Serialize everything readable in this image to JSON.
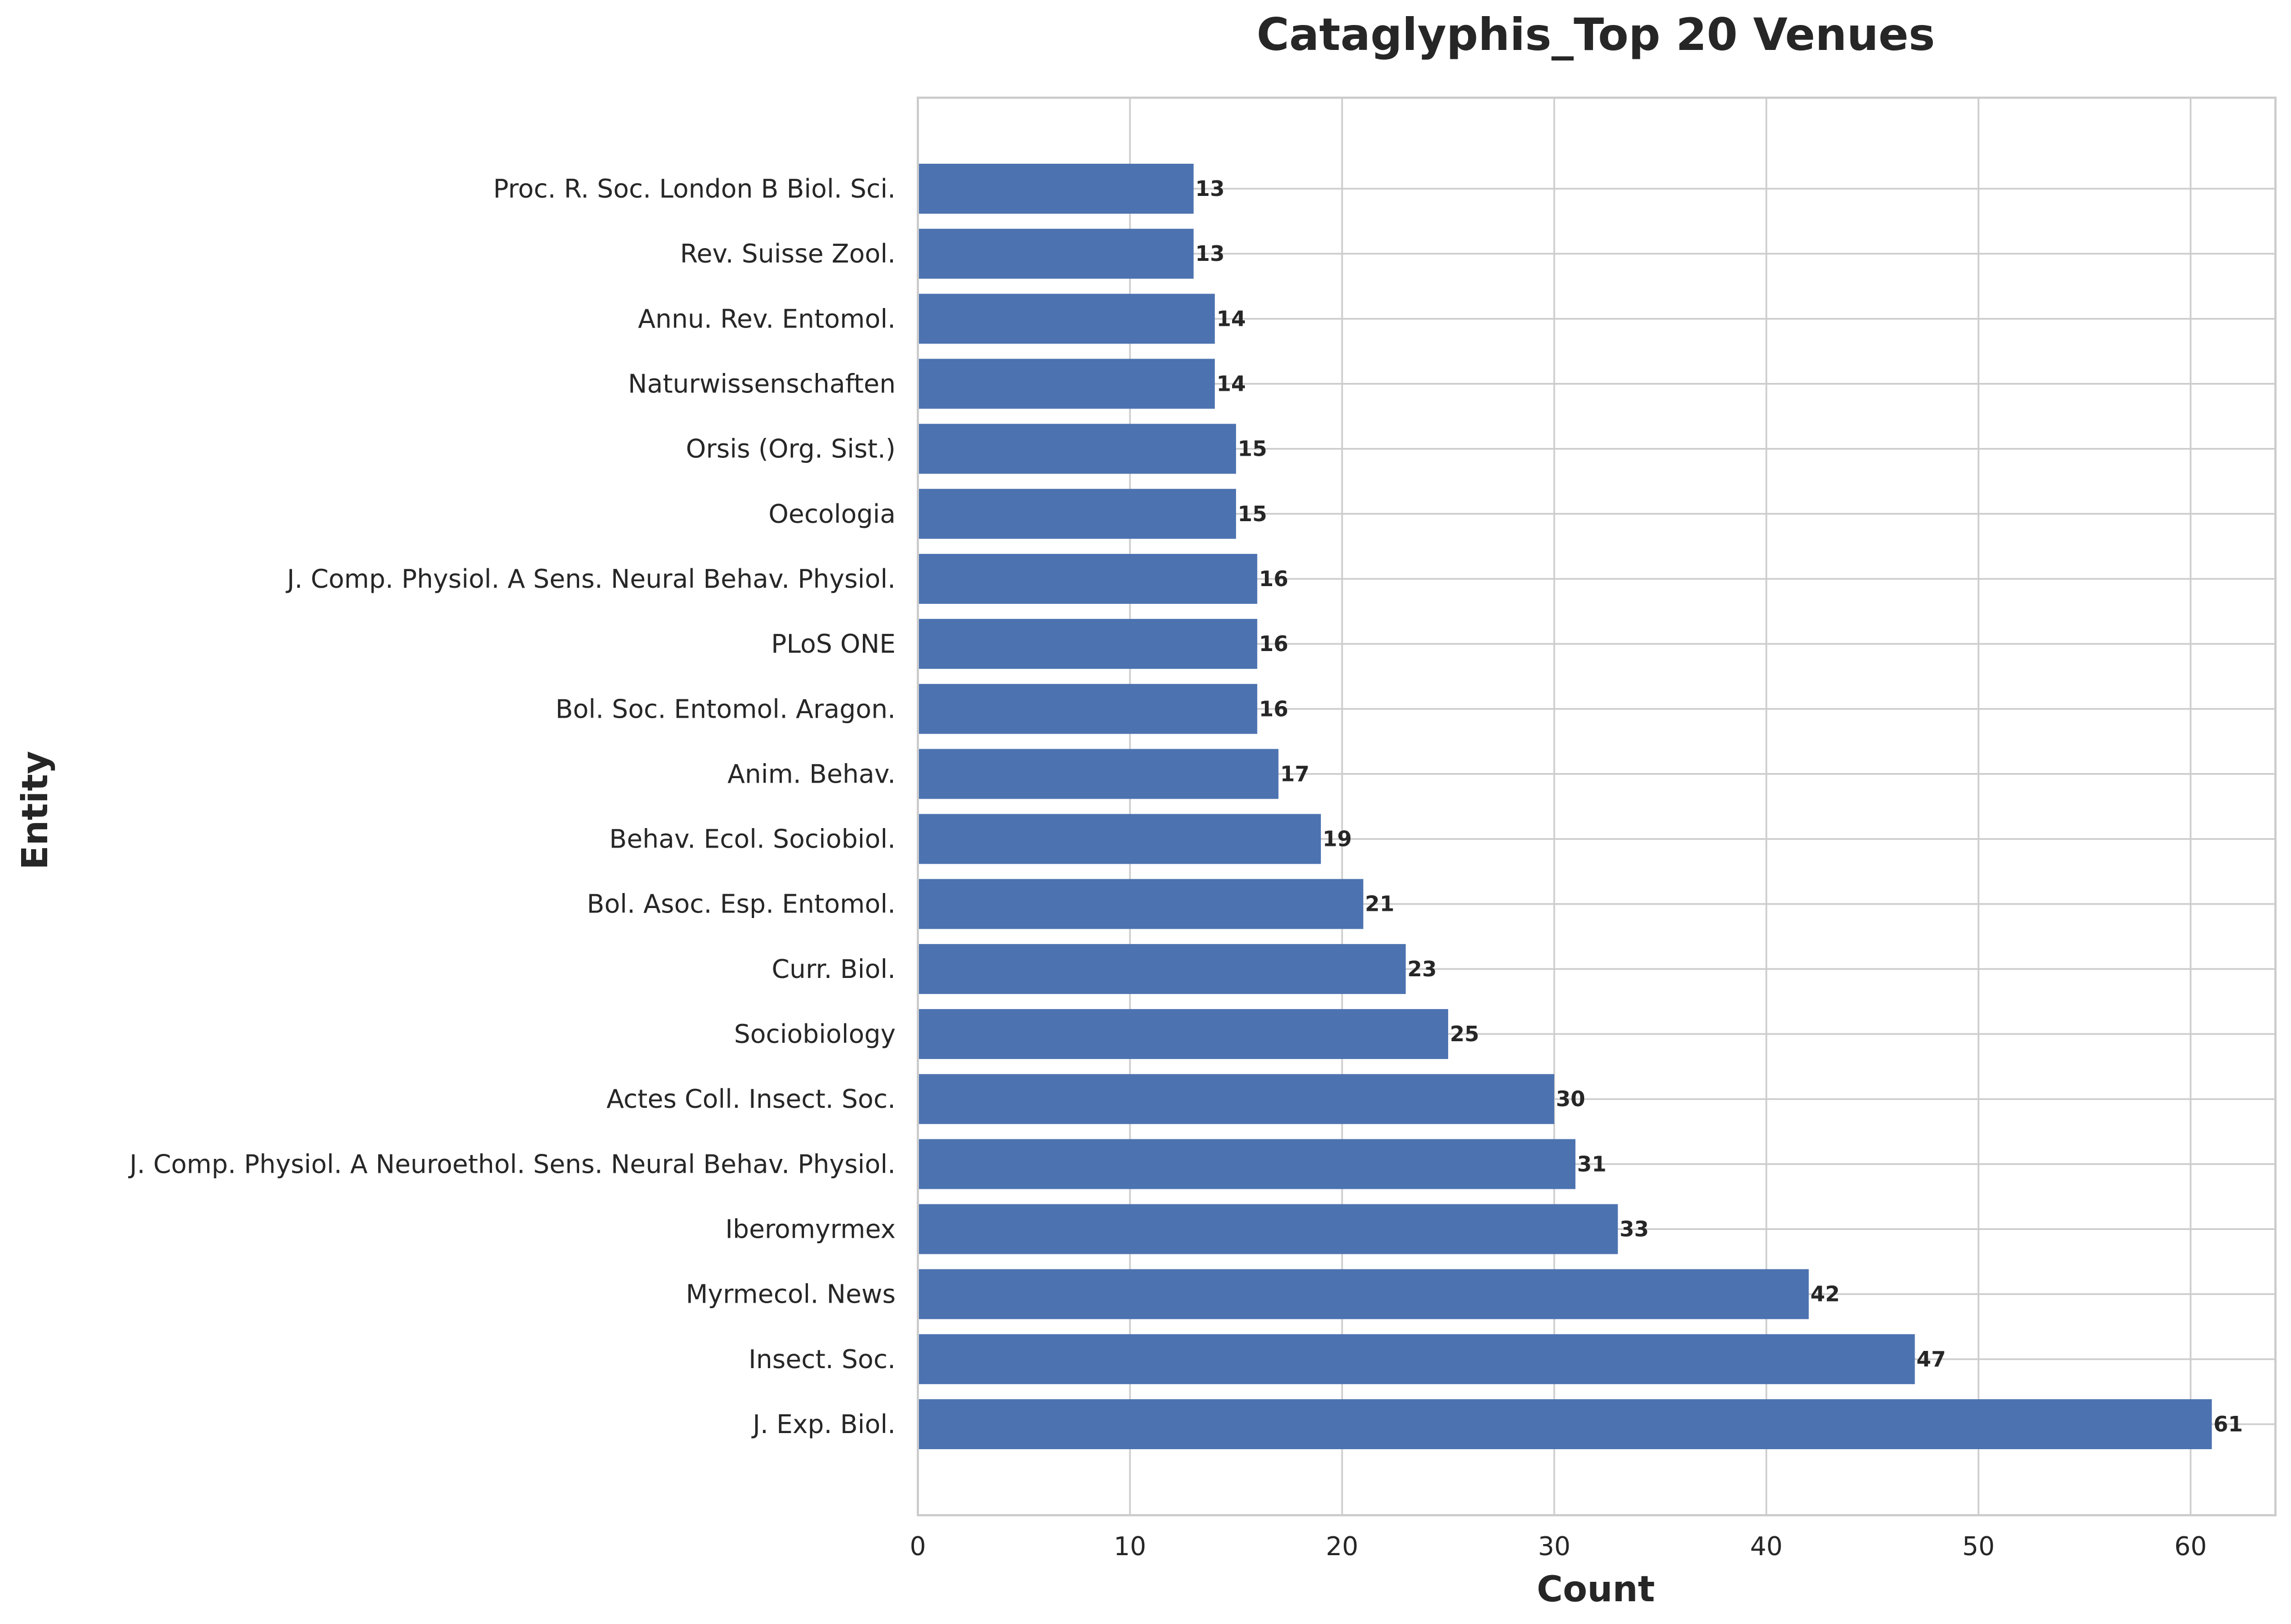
{
  "chart_data": {
    "type": "bar",
    "orientation": "horizontal",
    "title": "Cataglyphis_Top 20 Venues",
    "xlabel": "Count",
    "ylabel": "Entity",
    "xlim": [
      0,
      64
    ],
    "xticks": [
      0,
      10,
      20,
      30,
      40,
      50,
      60
    ],
    "grid": true,
    "bar_color": "#4c72b0",
    "categories": [
      "Proc. R. Soc. London B Biol. Sci.",
      "Rev. Suisse Zool.",
      "Annu. Rev. Entomol.",
      "Naturwissenschaften",
      "Orsis (Org. Sist.)",
      "Oecologia",
      "J. Comp. Physiol. A Sens. Neural Behav. Physiol.",
      "PLoS ONE",
      "Bol. Soc. Entomol. Aragon.",
      "Anim. Behav.",
      "Behav. Ecol. Sociobiol.",
      "Bol. Asoc. Esp. Entomol.",
      "Curr. Biol.",
      "Sociobiology",
      "Actes Coll. Insect. Soc.",
      "J. Comp. Physiol. A Neuroethol. Sens. Neural Behav. Physiol.",
      "Iberomyrmex",
      "Myrmecol. News",
      "Insect. Soc.",
      "J. Exp. Biol."
    ],
    "values": [
      13,
      13,
      14,
      14,
      15,
      15,
      16,
      16,
      16,
      17,
      19,
      21,
      23,
      25,
      30,
      31,
      33,
      42,
      47,
      61
    ]
  }
}
